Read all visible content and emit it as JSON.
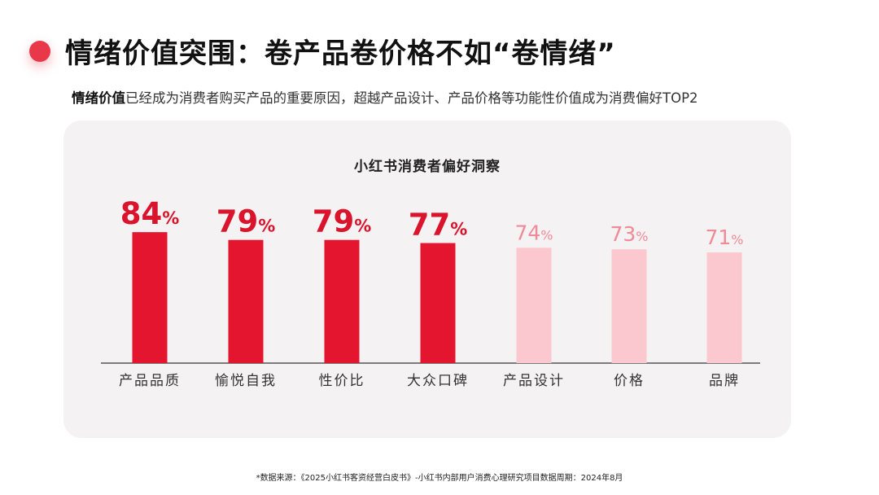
{
  "header": {
    "title": "情绪价值突围：卷产品卷价格不如“卷情绪”",
    "subtitle_highlight": "情绪价值",
    "subtitle_rest": "已经成为消费者购买产品的重要原因，超越产品设计、产品价格等功能性价值成为消费偏好TOP2"
  },
  "footnote": "*数据来源：《2025小红书客资经营白皮书》-小红书内部用户消费心理研究项目数据周期：2024年8月",
  "colors": {
    "accent": "#e8384a",
    "bar_strong": "#e3152f",
    "bar_light": "#fcc8cf",
    "label_strong": "#d9142c",
    "label_light": "#ef8a98",
    "panel_bg": "#f4f2f2"
  },
  "chart_data": {
    "type": "bar",
    "title": "小红书消费者偏好洞察",
    "categories": [
      "产品品质",
      "愉悦自我",
      "性价比",
      "大众口碑",
      "产品设计",
      "价格",
      "品牌"
    ],
    "values": [
      84,
      79,
      79,
      77,
      74,
      73,
      71
    ],
    "value_suffix": "%",
    "highlighted": [
      true,
      true,
      true,
      true,
      false,
      false,
      false
    ],
    "xlabel": "",
    "ylabel": ""
  }
}
